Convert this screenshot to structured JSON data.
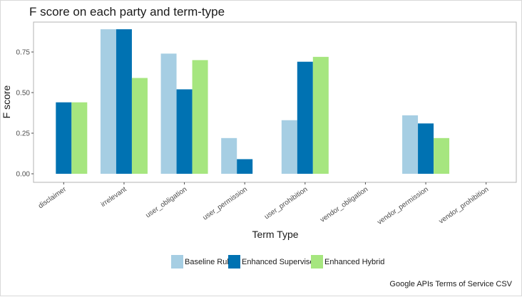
{
  "chart_data": {
    "type": "bar",
    "title": "F score on each party and term-type",
    "xlabel": "Term Type",
    "ylabel": "F score",
    "caption": "Google APIs Terms of Service CSV",
    "categories": [
      "disclaimer",
      "irrelevant",
      "user_obligation",
      "user_permission",
      "user_prohibition",
      "vendor_obligation",
      "vendor_permission",
      "vendor_prohibition"
    ],
    "yticks": [
      "0.00",
      "0.25",
      "0.50",
      "0.75"
    ],
    "ylim": [
      0,
      0.92
    ],
    "grid": false,
    "legend_position": "bottom",
    "series": [
      {
        "name": "Baseline Rule",
        "color": "#a6cee3",
        "values": [
          0,
          0.89,
          0.74,
          0.22,
          0.33,
          0,
          0.36,
          0
        ]
      },
      {
        "name": "Enhanced Supervised",
        "color": "#0072b2",
        "values": [
          0.44,
          0.89,
          0.52,
          0.09,
          0.69,
          0,
          0.31,
          0
        ]
      },
      {
        "name": "Enhanced Hybrid",
        "color": "#a6e67f",
        "values": [
          0.44,
          0.59,
          0.7,
          0,
          0.72,
          0,
          0.22,
          0
        ]
      }
    ]
  }
}
